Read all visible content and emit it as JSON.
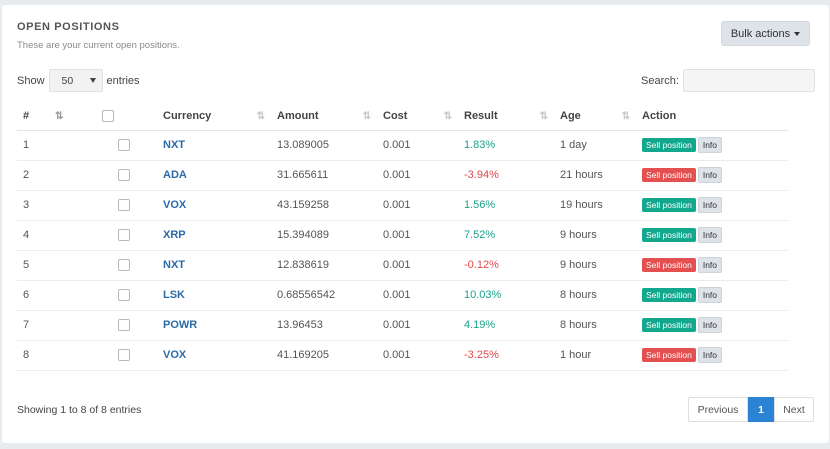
{
  "panel": {
    "title": "OPEN POSITIONS",
    "subtitle": "These are your current open positions.",
    "bulk_actions_label": "Bulk actions"
  },
  "length": {
    "show_label": "Show",
    "value": "50",
    "entries_label": "entries"
  },
  "search": {
    "label": "Search:",
    "value": ""
  },
  "table": {
    "headers": [
      "#",
      "",
      "Currency",
      "Amount",
      "Cost",
      "Result",
      "Age",
      "Action"
    ],
    "rows": [
      {
        "num": "1",
        "currency": "NXT",
        "amount": "13.089005",
        "cost": "0.001",
        "result": "1.83%",
        "result_sign": "positive",
        "age": "1 day",
        "sell_label": "Sell position",
        "info_label": "Info"
      },
      {
        "num": "2",
        "currency": "ADA",
        "amount": "31.665611",
        "cost": "0.001",
        "result": "-3.94%",
        "result_sign": "negative",
        "age": "21 hours",
        "sell_label": "Sell position",
        "info_label": "Info"
      },
      {
        "num": "3",
        "currency": "VOX",
        "amount": "43.159258",
        "cost": "0.001",
        "result": "1.56%",
        "result_sign": "positive",
        "age": "19 hours",
        "sell_label": "Sell position",
        "info_label": "Info"
      },
      {
        "num": "4",
        "currency": "XRP",
        "amount": "15.394089",
        "cost": "0.001",
        "result": "7.52%",
        "result_sign": "positive",
        "age": "9 hours",
        "sell_label": "Sell position",
        "info_label": "Info"
      },
      {
        "num": "5",
        "currency": "NXT",
        "amount": "12.838619",
        "cost": "0.001",
        "result": "-0.12%",
        "result_sign": "negative",
        "age": "9 hours",
        "sell_label": "Sell position",
        "info_label": "Info"
      },
      {
        "num": "6",
        "currency": "LSK",
        "amount": "0.68556542",
        "cost": "0.001",
        "result": "10.03%",
        "result_sign": "positive",
        "age": "8 hours",
        "sell_label": "Sell position",
        "info_label": "Info"
      },
      {
        "num": "7",
        "currency": "POWR",
        "amount": "13.96453",
        "cost": "0.001",
        "result": "4.19%",
        "result_sign": "positive",
        "age": "8 hours",
        "sell_label": "Sell position",
        "info_label": "Info"
      },
      {
        "num": "8",
        "currency": "VOX",
        "amount": "41.169205",
        "cost": "0.001",
        "result": "-3.25%",
        "result_sign": "negative",
        "age": "1 hour",
        "sell_label": "Sell position",
        "info_label": "Info"
      }
    ]
  },
  "footer": {
    "showing_text": "Showing 1 to 8 of 8 entries",
    "prev_label": "Previous",
    "current_page": "1",
    "next_label": "Next"
  },
  "colors": {
    "positive": "#1aa28a",
    "negative": "#e04848",
    "sell_green": "#12a88e",
    "sell_red": "#e44f4f",
    "link": "#2a6ba8",
    "pager_active": "#2a83d3"
  }
}
